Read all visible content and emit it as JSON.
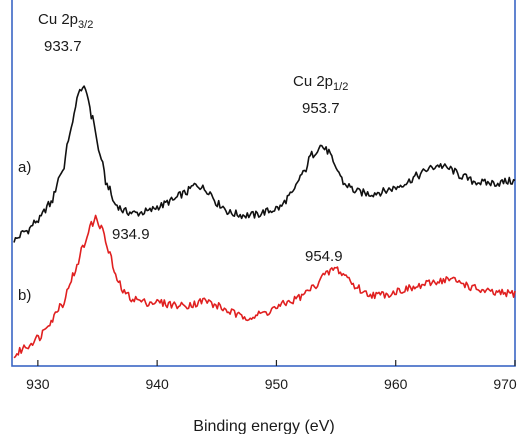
{
  "chart_data": {
    "type": "line",
    "xlabel": "Binding energy (eV)",
    "ylabel": "",
    "xlim": [
      928,
      970
    ],
    "x_ticks": [
      930,
      940,
      950,
      960,
      970
    ],
    "x_tick_labels": [
      "930",
      "940",
      "950",
      "960",
      "970"
    ],
    "y_ticks_visible": false,
    "grid": false,
    "series": [
      {
        "trace_label": "a)",
        "color": "#111111",
        "x": [
          928,
          929,
          930,
          931,
          932,
          932.8,
          933.3,
          933.7,
          934.1,
          934.6,
          935.2,
          935.8,
          936.5,
          937.3,
          938.2,
          939.2,
          940.2,
          941.2,
          942.2,
          943.3,
          944.2,
          945.2,
          946.2,
          947.2,
          948.2,
          949.2,
          950.2,
          951.2,
          952.2,
          953.0,
          953.7,
          954.3,
          955.0,
          955.8,
          956.8,
          957.8,
          958.8,
          959.8,
          960.8,
          961.8,
          962.8,
          963.6,
          964.5,
          965.5,
          966.5,
          967.5,
          968.5,
          969.5,
          970
        ],
        "y": [
          0.0,
          0.05,
          0.11,
          0.2,
          0.38,
          0.62,
          0.8,
          0.86,
          0.82,
          0.68,
          0.48,
          0.31,
          0.2,
          0.16,
          0.15,
          0.16,
          0.19,
          0.22,
          0.26,
          0.31,
          0.28,
          0.2,
          0.15,
          0.14,
          0.14,
          0.16,
          0.18,
          0.25,
          0.37,
          0.48,
          0.53,
          0.5,
          0.4,
          0.31,
          0.27,
          0.26,
          0.27,
          0.29,
          0.32,
          0.36,
          0.4,
          0.42,
          0.4,
          0.36,
          0.33,
          0.32,
          0.32,
          0.33,
          0.33
        ]
      },
      {
        "trace_label": "b)",
        "color": "#e02020",
        "x": [
          928,
          929,
          930,
          931,
          932,
          933,
          933.8,
          934.4,
          934.9,
          935.4,
          936.0,
          936.6,
          937.3,
          938.0,
          939.0,
          940.0,
          941.0,
          942.0,
          943.0,
          944.0,
          945.0,
          946.0,
          947.0,
          948.0,
          949.0,
          950.0,
          951.0,
          952.0,
          953.0,
          954.0,
          954.9,
          955.8,
          956.6,
          957.5,
          958.5,
          959.5,
          960.5,
          961.5,
          962.5,
          963.5,
          964.5,
          965.5,
          966.5,
          967.5,
          968.5,
          969.5,
          970
        ],
        "y": [
          -0.65,
          -0.6,
          -0.55,
          -0.46,
          -0.36,
          -0.2,
          -0.04,
          0.08,
          0.12,
          0.06,
          -0.08,
          -0.22,
          -0.3,
          -0.33,
          -0.35,
          -0.35,
          -0.36,
          -0.37,
          -0.36,
          -0.34,
          -0.37,
          -0.4,
          -0.43,
          -0.43,
          -0.41,
          -0.38,
          -0.35,
          -0.32,
          -0.27,
          -0.2,
          -0.16,
          -0.2,
          -0.26,
          -0.3,
          -0.31,
          -0.3,
          -0.28,
          -0.27,
          -0.25,
          -0.23,
          -0.22,
          -0.24,
          -0.27,
          -0.29,
          -0.3,
          -0.3,
          -0.3
        ]
      }
    ],
    "annotations": [
      {
        "series": "a)",
        "x": 933.7,
        "label": "Cu 2p",
        "sub": "3/2",
        "value": "933.7"
      },
      {
        "series": "a)",
        "x": 953.7,
        "label": "Cu 2p",
        "sub": "1/2",
        "value": "953.7"
      },
      {
        "series": "b)",
        "x": 934.9,
        "label": "",
        "sub": "",
        "value": "934.9"
      },
      {
        "series": "b)",
        "x": 954.9,
        "label": "",
        "sub": "",
        "value": "954.9"
      }
    ]
  }
}
